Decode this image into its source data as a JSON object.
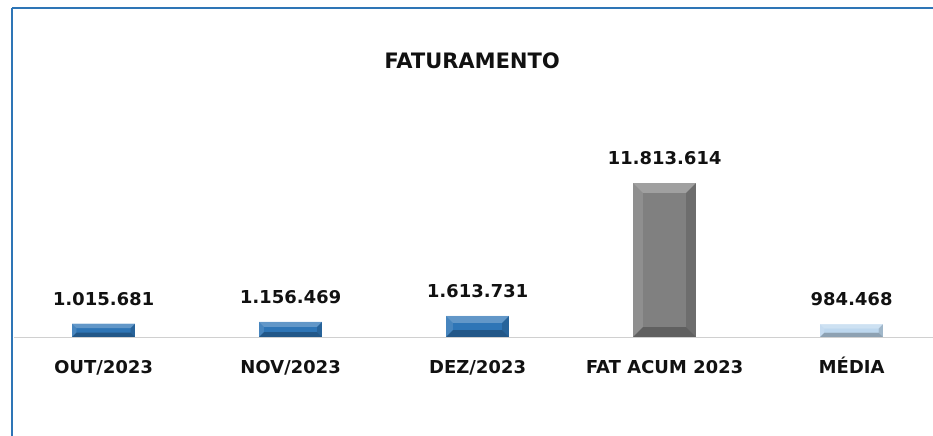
{
  "chart_data": {
    "type": "bar",
    "title": "FATURAMENTO",
    "categories": [
      "OUT/2023",
      "NOV/2023",
      "DEZ/2023",
      "FAT ACUM 2023",
      "MÉDIA"
    ],
    "values": [
      1015681,
      1156469,
      1613731,
      11813614,
      984468
    ],
    "value_labels": [
      "1.015.681",
      "1.156.469",
      "1.613.731",
      "11.813.614",
      "984.468"
    ],
    "colors": [
      "#2e75b6",
      "#2e75b6",
      "#2e75b6",
      "#808080",
      "#bdd7ee"
    ]
  }
}
